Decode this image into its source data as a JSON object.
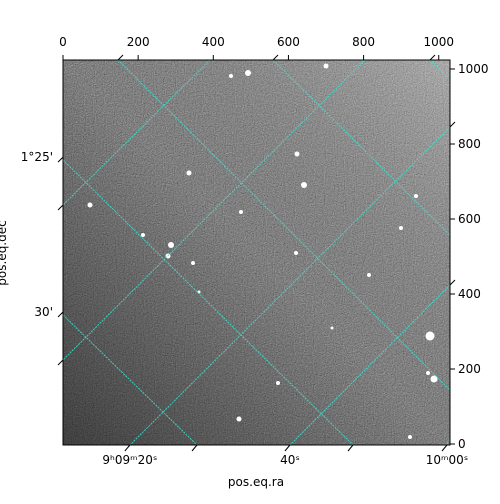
{
  "chart_data": {
    "type": "image",
    "x_label": "pos.eq.ra",
    "y_label": "pos.eq.dec",
    "xlim": [
      0,
      1030
    ],
    "ylim": [
      0,
      1024
    ],
    "xticks": [
      0,
      200,
      400,
      600,
      800,
      1000
    ],
    "yticks": [
      0,
      200,
      400,
      600,
      800,
      1000
    ],
    "ra_ticks": [
      {
        "value": 178,
        "label": "9ʰ09ᵐ20ˢ"
      },
      {
        "value": 604,
        "label": "40ˢ"
      },
      {
        "value": 1022,
        "label": "10ᵐ00ˢ"
      }
    ],
    "dec_ticks": [
      {
        "value": 765,
        "label": "1°25'"
      },
      {
        "value": 352,
        "label": "30'"
      }
    ],
    "grid_color": "#40e0d0"
  }
}
